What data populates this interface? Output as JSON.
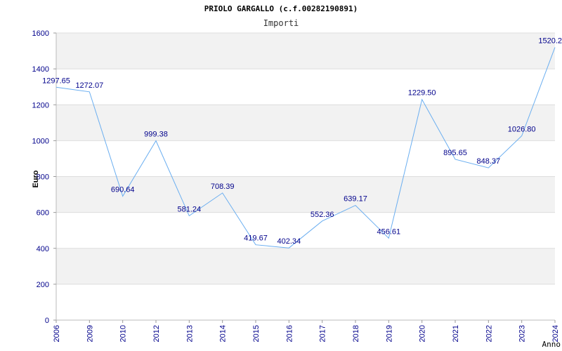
{
  "chart_data": {
    "type": "line",
    "title": "PRIOLO GARGALLO (c.f.00282190891)",
    "subtitle": "Importi",
    "xlabel": "Anno",
    "ylabel": "Euro",
    "ylim": [
      0,
      1600
    ],
    "y_ticks": [
      0,
      200,
      400,
      600,
      800,
      1000,
      1200,
      1400,
      1600
    ],
    "categories": [
      "2006",
      "2009",
      "2010",
      "2012",
      "2013",
      "2014",
      "2015",
      "2016",
      "2017",
      "2018",
      "2019",
      "2020",
      "2021",
      "2022",
      "2023",
      "2024"
    ],
    "values": [
      1297.65,
      1272.07,
      690.64,
      999.38,
      581.24,
      708.39,
      419.67,
      402.34,
      552.36,
      639.17,
      456.61,
      1229.5,
      895.65,
      848.37,
      1026.8,
      1520.2
    ],
    "data_labels": [
      "1297.65",
      "1272.07",
      "690.64",
      "999.38",
      "581.24",
      "708.39",
      "419.67",
      "402.34",
      "552.36",
      "639.17",
      "456.61",
      "1229.50",
      "895.65",
      "848.37",
      "1026.80",
      "1520.2"
    ],
    "grid": true,
    "band_color": "#f2f2f2",
    "grid_color": "#dddddd",
    "line_color": "#6aaef0",
    "label_color": "#00008b"
  }
}
